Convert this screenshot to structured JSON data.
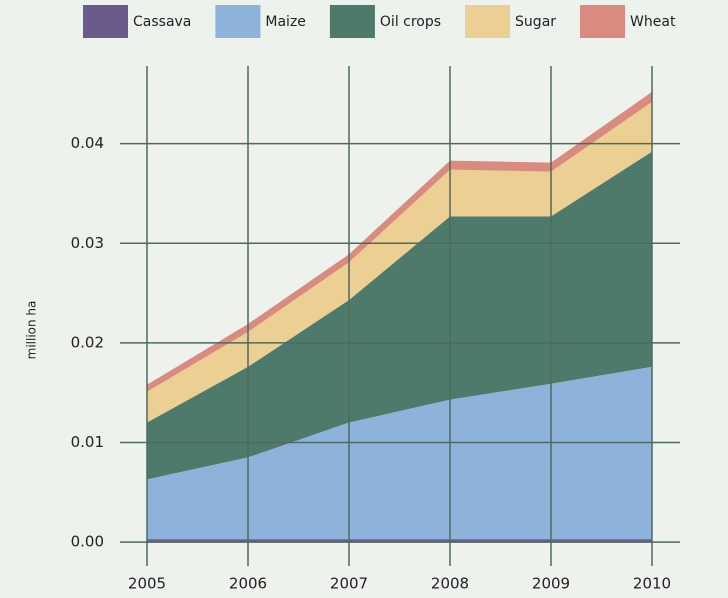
{
  "chart_data": {
    "type": "stacked_area",
    "y_label": "million ha",
    "x": [
      2005,
      2006,
      2007,
      2008,
      2009,
      2010
    ],
    "xlim": [
      2005,
      2010
    ],
    "xticks": [
      2005,
      2006,
      2007,
      2008,
      2009,
      2010
    ],
    "ylim": [
      -0.002,
      0.048
    ],
    "yticks": [
      {
        "value": 0,
        "label": "0.00"
      },
      0.01,
      0.02,
      0.03,
      0.04
    ],
    "grid": true,
    "legend": "top",
    "series": [
      {
        "name": "Cassava",
        "color": "#6b5b8c",
        "values": [
          0.0003,
          0.0003,
          0.0003,
          0.0003,
          0.0003,
          0.0003
        ]
      },
      {
        "name": "Maize",
        "color": "#8db3db",
        "values": [
          0.006,
          0.0082,
          0.0117,
          0.014,
          0.0156,
          0.0173
        ]
      },
      {
        "name": "Oil crops",
        "color": "#4e7a6c",
        "values": [
          0.0057,
          0.0091,
          0.0123,
          0.0184,
          0.0168,
          0.0216
        ]
      },
      {
        "name": "Sugar",
        "color": "#ebcf93",
        "values": [
          0.0031,
          0.0035,
          0.0038,
          0.0047,
          0.0045,
          0.005
        ]
      },
      {
        "name": "Wheat",
        "color": "#d98b80",
        "values": [
          0.0007,
          0.0008,
          0.0008,
          0.0009,
          0.0009,
          0.001
        ]
      }
    ]
  }
}
